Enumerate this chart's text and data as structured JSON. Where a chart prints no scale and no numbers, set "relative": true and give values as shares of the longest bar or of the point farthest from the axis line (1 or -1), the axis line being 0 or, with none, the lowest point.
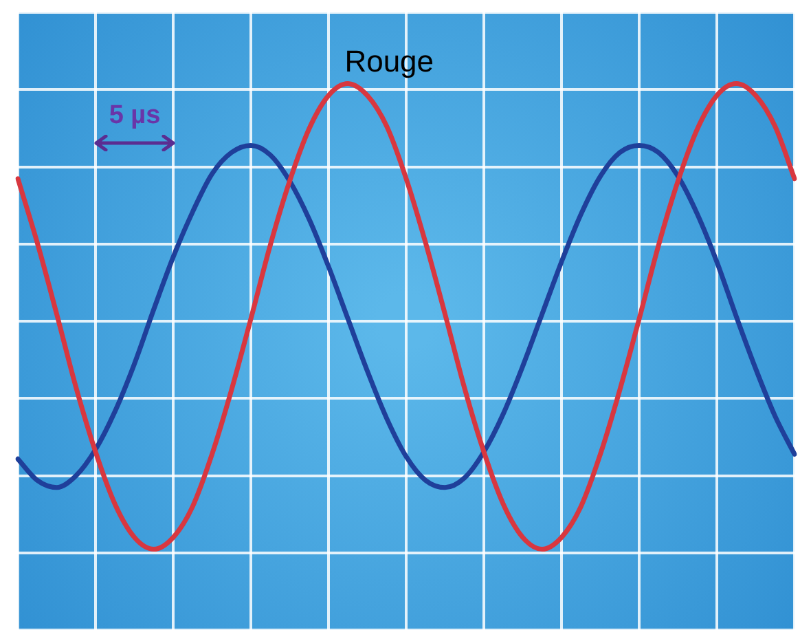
{
  "chart_data": {
    "type": "line",
    "relative": true,
    "grid": true,
    "tick_labels": false,
    "legend": false,
    "marker": "none",
    "line_style": "solid",
    "categories": [
      null,
      null,
      null,
      null,
      null,
      null,
      null,
      null,
      null,
      null,
      null,
      null,
      null,
      null,
      null,
      null,
      null,
      null,
      null,
      null,
      null,
      null,
      null,
      null,
      null,
      null,
      null,
      null,
      null,
      null,
      null,
      null,
      null,
      null,
      null,
      null,
      null,
      null,
      null,
      null,
      null
    ],
    "series": [
      {
        "name": "Rouge",
        "color": "#d8373f",
        "values": [
          0.6,
          0.33,
          0.03,
          -0.28,
          -0.55,
          -0.77,
          -0.91,
          -0.96,
          -0.91,
          -0.78,
          -0.56,
          -0.29,
          0.01,
          0.32,
          0.59,
          0.81,
          0.95,
          1.0,
          0.95,
          0.82,
          0.6,
          0.33,
          0.03,
          -0.28,
          -0.55,
          -0.77,
          -0.91,
          -0.96,
          -0.91,
          -0.78,
          -0.56,
          -0.29,
          0.01,
          0.32,
          0.59,
          0.81,
          0.95,
          1.0,
          0.95,
          0.82,
          0.6
        ]
      },
      {
        "color": "#1f3f9a",
        "values": [
          -0.58,
          -0.67,
          -0.7,
          -0.65,
          -0.54,
          -0.38,
          -0.18,
          0.05,
          0.27,
          0.46,
          0.62,
          0.71,
          0.74,
          0.7,
          0.59,
          0.43,
          0.23,
          0.01,
          -0.21,
          -0.41,
          -0.57,
          -0.67,
          -0.7,
          -0.66,
          -0.55,
          -0.39,
          -0.19,
          0.03,
          0.25,
          0.45,
          0.61,
          0.71,
          0.74,
          0.71,
          0.61,
          0.45,
          0.25,
          0.02,
          -0.2,
          -0.4,
          -0.56
        ]
      }
    ],
    "annotations": [
      "5 µs"
    ]
  }
}
